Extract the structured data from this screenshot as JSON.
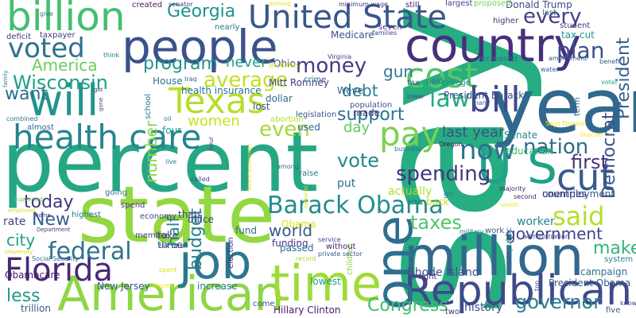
{
  "words": [
    {
      "text": "say",
      "color": "#26ad81"
    },
    {
      "text": "percent",
      "color": "#26a784"
    },
    {
      "text": "state",
      "color": "#93d741"
    },
    {
      "text": "year",
      "color": "#31688e"
    },
    {
      "text": "people",
      "color": "#3b528b"
    },
    {
      "text": "country",
      "color": "#472f7d"
    },
    {
      "text": "United State",
      "color": "#39558c"
    },
    {
      "text": "billion",
      "color": "#44bf70"
    },
    {
      "text": "million",
      "color": "#31688e"
    },
    {
      "text": "Republican",
      "color": "#3e4a89"
    },
    {
      "text": "American",
      "color": "#8ed645"
    },
    {
      "text": "health care",
      "color": "#25858e"
    },
    {
      "text": "will",
      "color": "#1f958b"
    },
    {
      "text": "time",
      "color": "#a0da39"
    },
    {
      "text": "job",
      "color": "#2a788e"
    },
    {
      "text": "one",
      "color": "#2d708e"
    },
    {
      "text": "Texas",
      "color": "#b8de29"
    },
    {
      "text": "cost",
      "color": "#56c667"
    },
    {
      "text": "voted",
      "color": "#2c728e"
    },
    {
      "text": "pay",
      "color": "#7ad151"
    },
    {
      "text": "bill",
      "color": "#3f4889"
    },
    {
      "text": "cut",
      "color": "#375b8d"
    },
    {
      "text": "U S",
      "color": "#1fa287"
    },
    {
      "text": "Florida",
      "color": "#482878"
    },
    {
      "text": "Barack Obama",
      "color": "#228c8d"
    },
    {
      "text": "said",
      "color": "#b5de2b"
    },
    {
      "text": "Wisconsin",
      "color": "#1f9e89"
    },
    {
      "text": "now",
      "color": "#2d718e"
    },
    {
      "text": "money",
      "color": "#443983"
    },
    {
      "text": "average",
      "color": "#c2df23"
    },
    {
      "text": "federal",
      "color": "#2c738e"
    },
    {
      "text": "law",
      "color": "#25ac82"
    },
    {
      "text": "every",
      "color": "#433e85"
    },
    {
      "text": "Georgia",
      "color": "#20928c"
    },
    {
      "text": "America",
      "color": "#6ccd5a"
    },
    {
      "text": "program",
      "color": "#21918c"
    },
    {
      "text": "nation",
      "color": "#2f6c8e"
    },
    {
      "text": "spending",
      "color": "#453581"
    },
    {
      "text": "women",
      "color": "#cde11d"
    },
    {
      "text": "even",
      "color": "#a5db36"
    },
    {
      "text": "world",
      "color": "#365c8d"
    },
    {
      "text": "taxes",
      "color": "#52c569"
    },
    {
      "text": "government",
      "color": "#404688"
    },
    {
      "text": "governor",
      "color": "#26828e"
    },
    {
      "text": "Congress",
      "color": "#3fbc73"
    },
    {
      "text": "today",
      "color": "#46327e"
    },
    {
      "text": "want",
      "color": "#2e6e8e"
    },
    {
      "text": "plan",
      "color": "#3c508b"
    },
    {
      "text": "first",
      "color": "#46337f"
    },
    {
      "text": "vote",
      "color": "#24878e"
    },
    {
      "text": "support",
      "color": "#2b748e"
    },
    {
      "text": "debt",
      "color": "#29798e"
    },
    {
      "text": "gun",
      "color": "#297a8e"
    },
    {
      "text": "city",
      "color": "#1fa188"
    },
    {
      "text": "half",
      "color": "#25838e"
    },
    {
      "text": "less",
      "color": "#1f998a"
    },
    {
      "text": "make",
      "color": "#31b57b"
    },
    {
      "text": "day",
      "color": "#60ca60"
    },
    {
      "text": "last year",
      "color": "#3b518b"
    },
    {
      "text": "budget",
      "color": "#26818e"
    },
    {
      "text": "Democrat",
      "color": "#3b528b"
    },
    {
      "text": "President",
      "color": "#355f8d"
    },
    {
      "text": "New",
      "color": "#34608d"
    },
    {
      "text": "number",
      "color": "#8bd646"
    },
    {
      "text": "Mitt Romney",
      "color": "#414487"
    },
    {
      "text": "never",
      "color": "#1f9f88"
    },
    {
      "text": "Ohio",
      "color": "#3d4e8a"
    },
    {
      "text": "history",
      "color": "#3e4989"
    },
    {
      "text": "Rhode Island",
      "color": "#3b528b"
    },
    {
      "text": "actually",
      "color": "#b2dd2d"
    },
    {
      "text": "Obama",
      "color": "#dce319"
    },
    {
      "text": "worker",
      "color": "#25848e"
    },
    {
      "text": "Donald Trump",
      "color": "#3e4989"
    },
    {
      "text": "Medicare",
      "color": "#39558c"
    },
    {
      "text": "House",
      "color": "#2c728e"
    },
    {
      "text": "health insurance",
      "color": "#2d708e"
    },
    {
      "text": "dollar",
      "color": "#2e6e8e"
    },
    {
      "text": "lost",
      "color": "#38588c"
    },
    {
      "text": "tax cut",
      "color": "#1f988b"
    },
    {
      "text": "education",
      "color": "#3dbc74"
    },
    {
      "text": "unemployment",
      "color": "#38588c"
    },
    {
      "text": "campaign",
      "color": "#2e6f8e"
    },
    {
      "text": "President Obama",
      "color": "#39568c"
    },
    {
      "text": "President Barack",
      "color": "#3d4d8a"
    },
    {
      "text": "Senate",
      "color": "#24878e"
    },
    {
      "text": "countries",
      "color": "#46327e"
    },
    {
      "text": "Hillary Clinton",
      "color": "#48186a"
    },
    {
      "text": "Obamacare",
      "color": "#471365"
    },
    {
      "text": "New Jersey",
      "color": "#39568c"
    },
    {
      "text": "trillion",
      "color": "#38598c"
    },
    {
      "text": "rate",
      "color": "#404688"
    },
    {
      "text": "increase",
      "color": "#2a778e"
    },
    {
      "text": "lowest",
      "color": "#1e9c89"
    },
    {
      "text": "children",
      "color": "#8bd646"
    },
    {
      "text": "largest",
      "color": "#404688"
    },
    {
      "text": "minimum wage",
      "color": "#443983"
    },
    {
      "text": "senator",
      "color": "#424086"
    },
    {
      "text": "created",
      "color": "#48186a"
    },
    {
      "text": "taxpayer",
      "color": "#443983"
    },
    {
      "text": "deficit",
      "color": "#453781"
    },
    {
      "text": "proposed",
      "color": "#7ad151"
    },
    {
      "text": "student",
      "color": "#443983"
    },
    {
      "text": "higher",
      "color": "#472c7a"
    },
    {
      "text": "increased",
      "color": "#2a778e"
    },
    {
      "text": "college",
      "color": "#24868e"
    },
    {
      "text": "paid",
      "color": "#2c718e"
    },
    {
      "text": "tax",
      "color": "#3a548c"
    },
    {
      "text": "four",
      "color": "#1fa088"
    },
    {
      "text": "three",
      "color": "#2a768e"
    },
    {
      "text": "five",
      "color": "#3b528b"
    },
    {
      "text": "two",
      "color": "#46337f"
    },
    {
      "text": "first2",
      "color": "#46337f"
    },
    {
      "text": "office",
      "color": "#3f4788"
    },
    {
      "text": "economy",
      "color": "#414487"
    },
    {
      "text": "member",
      "color": "#453882"
    },
    {
      "text": "thats",
      "color": "#404588"
    },
    {
      "text": "spend",
      "color": "#46307e"
    },
    {
      "text": "going",
      "color": "#2f6c8e"
    },
    {
      "text": "highest",
      "color": "#2e6e8e"
    },
    {
      "text": "employed",
      "color": "#d2e21b"
    },
    {
      "text": "Social Security",
      "color": "#2c728e"
    },
    {
      "text": "almost",
      "color": "#32658e"
    },
    {
      "text": "combined",
      "color": "#2c738e"
    },
    {
      "text": "school",
      "color": "#2c728e"
    },
    {
      "text": "funding",
      "color": "#46327e"
    },
    {
      "text": "service",
      "color": "#3f4788"
    },
    {
      "text": "private sector",
      "color": "#38598c"
    },
    {
      "text": "without",
      "color": "#482576"
    },
    {
      "text": "fund",
      "color": "#31678e"
    },
    {
      "text": "passed",
      "color": "#2e6e8e"
    },
    {
      "text": "election",
      "color": "#453581"
    },
    {
      "text": "take",
      "color": "#404588"
    },
    {
      "text": "tax rate",
      "color": "#46307e"
    },
    {
      "text": "come",
      "color": "#3a548c"
    },
    {
      "text": "record",
      "color": "#a8db34"
    },
    {
      "text": "put",
      "color": "#2d708e"
    },
    {
      "text": "raise",
      "color": "#2b758e"
    },
    {
      "text": "used",
      "color": "#32658e"
    },
    {
      "text": "abortion",
      "color": "#b5de2b"
    },
    {
      "text": "made",
      "color": "#46327e"
    },
    {
      "text": "legislation",
      "color": "#3a548c"
    },
    {
      "text": "population",
      "color": "#3a548c"
    },
    {
      "text": "crime",
      "color": "#31678e"
    },
    {
      "text": "Weve",
      "color": "#2e6e8e"
    },
    {
      "text": "Virginia",
      "color": "#424086"
    },
    {
      "text": "income",
      "color": "#d2e21b"
    },
    {
      "text": "nearly",
      "color": "#2a768e"
    },
    {
      "text": "seven",
      "color": "#443983"
    },
    {
      "text": "still",
      "color": "#482071"
    },
    {
      "text": "families",
      "color": "#404688"
    },
    {
      "text": "last",
      "color": "#2a788e"
    },
    {
      "text": "give",
      "color": "#2a788e"
    },
    {
      "text": "think",
      "color": "#2a788e"
    },
    {
      "text": "Iraq",
      "color": "#35608d"
    },
    {
      "text": "right",
      "color": "#472a7a"
    },
    {
      "text": "back",
      "color": "#c8e020"
    },
    {
      "text": "business",
      "color": "#2d708e"
    },
    {
      "text": "Oregon",
      "color": "#46075a"
    },
    {
      "text": "majority",
      "color": "#482071"
    },
    {
      "text": "union",
      "color": "#e7e419"
    },
    {
      "text": "second",
      "color": "#48186a"
    },
    {
      "text": "military",
      "color": "#29798e"
    },
    {
      "text": "work",
      "color": "#39568c"
    },
    {
      "text": "public",
      "color": "#24868e"
    },
    {
      "text": "administration",
      "color": "#3f4889"
    },
    {
      "text": "system",
      "color": "#26818e"
    },
    {
      "text": "amendment",
      "color": "#3b528b"
    },
    {
      "text": "benefit",
      "color": "#3b528b"
    },
    {
      "text": "water",
      "color": "#32648e"
    },
    {
      "text": "voter",
      "color": "#1fa188"
    },
    {
      "text": "term",
      "color": "#31678e"
    },
    {
      "text": "Says Donald",
      "color": "#f8e621"
    },
    {
      "text": "teacher",
      "color": "#fde725"
    },
    {
      "text": "lower",
      "color": "#3e4c8a"
    },
    {
      "text": "many",
      "color": "#2c738e"
    },
    {
      "text": "know",
      "color": "#404688"
    },
    {
      "text": "top",
      "color": "#3b528b"
    },
    {
      "text": "family",
      "color": "#2a788e"
    },
    {
      "text": "got",
      "color": "#46327e"
    },
    {
      "text": "gone",
      "color": "#424086"
    },
    {
      "text": "oil",
      "color": "#2a788e"
    },
    {
      "text": "hour",
      "color": "#3e4a89"
    },
    {
      "text": "live",
      "color": "#26828e"
    },
    {
      "text": "called",
      "color": "#3e4a89"
    },
    {
      "text": "Department",
      "color": "#443983"
    },
    {
      "text": "home",
      "color": "#443983"
    },
    {
      "text": "supported",
      "color": "#6ece58"
    },
    {
      "text": "University",
      "color": "#ddd31a"
    },
    {
      "text": "spent",
      "color": "#d8e219"
    },
    {
      "text": "month",
      "color": "#eae51a"
    },
    {
      "text": "working",
      "color": "#e5e419"
    },
    {
      "text": "national",
      "color": "#d0e11c"
    },
    {
      "text": "among",
      "color": "#2d718e"
    },
    {
      "text": "federal government",
      "color": "#f1e51d"
    },
    {
      "text": "go",
      "color": "#26828e"
    }
  ]
}
